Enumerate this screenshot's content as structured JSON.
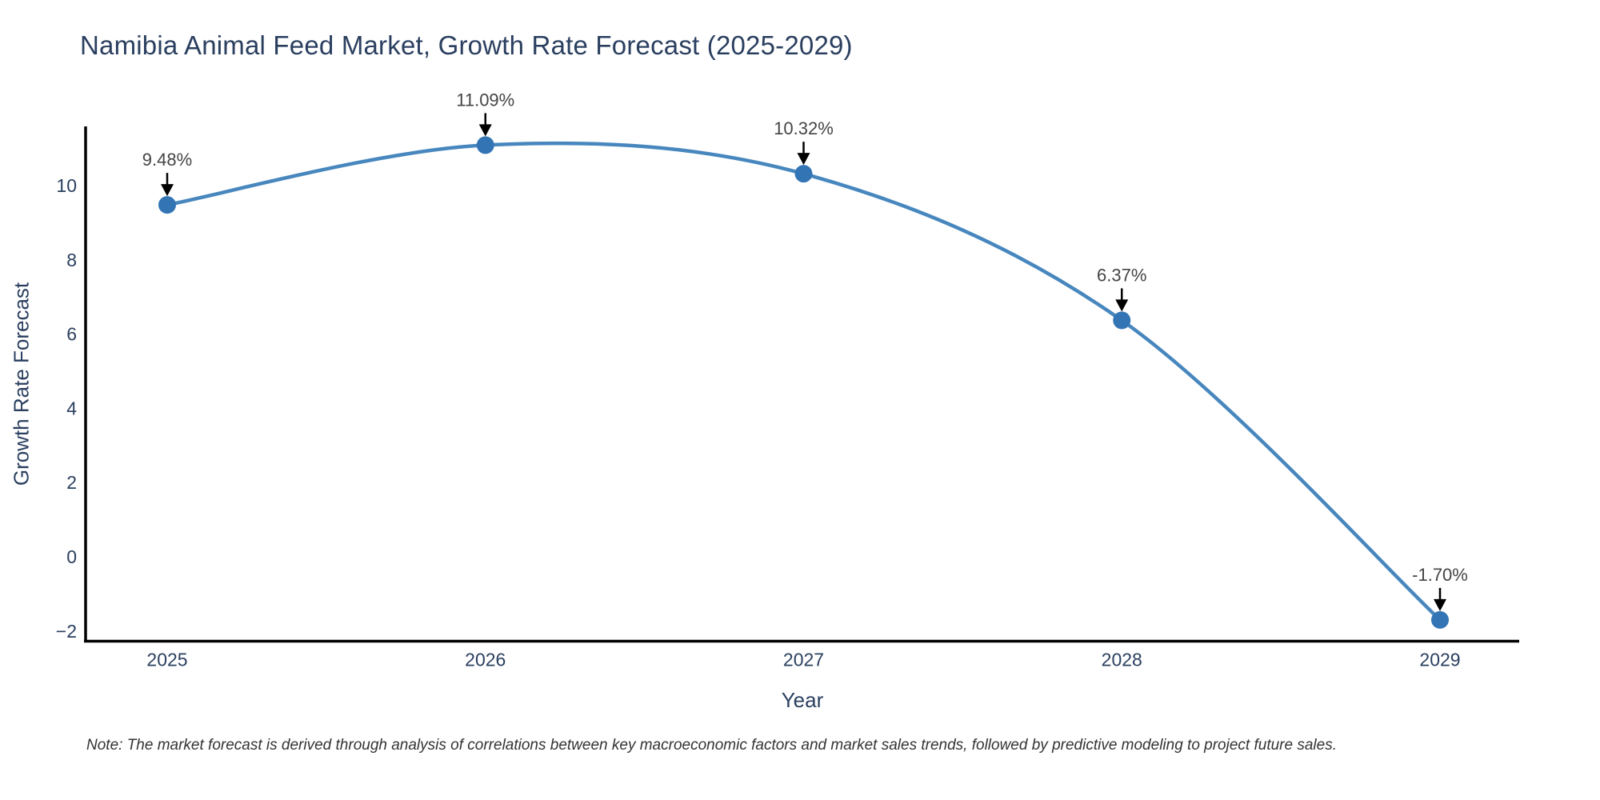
{
  "chart_data": {
    "type": "line",
    "line_shape": "spline",
    "title": "Namibia Animal Feed Market, Growth Rate Forecast (2025-2029)",
    "xlabel": "Year",
    "ylabel": "Growth Rate Forecast",
    "note": "Note: The market forecast is derived through analysis of correlations between key macroeconomic factors and market sales trends, followed by predictive modeling to project future sales.",
    "x": [
      2025,
      2026,
      2027,
      2028,
      2029
    ],
    "values": [
      9.48,
      11.09,
      10.32,
      6.37,
      -1.7
    ],
    "point_labels": [
      "9.48%",
      "11.09%",
      "10.32%",
      "6.37%",
      "-1.70%"
    ],
    "yticks": [
      10,
      8,
      6,
      4,
      2,
      0,
      -2
    ],
    "ylim": [
      -2.26,
      11.55
    ],
    "grid": false,
    "legend": "none",
    "marker_style": "circle",
    "annotation_arrow": "down",
    "colors": {
      "line": "#4787be",
      "marker": "#3375b4",
      "axis_line": "#000000",
      "axis_text": "#2a3f5f",
      "title_text": "#2a3f5f",
      "annotation_text": "#444444",
      "annotation_arrow": "#000000",
      "note_text": "#333333",
      "background": "#ffffff"
    }
  }
}
